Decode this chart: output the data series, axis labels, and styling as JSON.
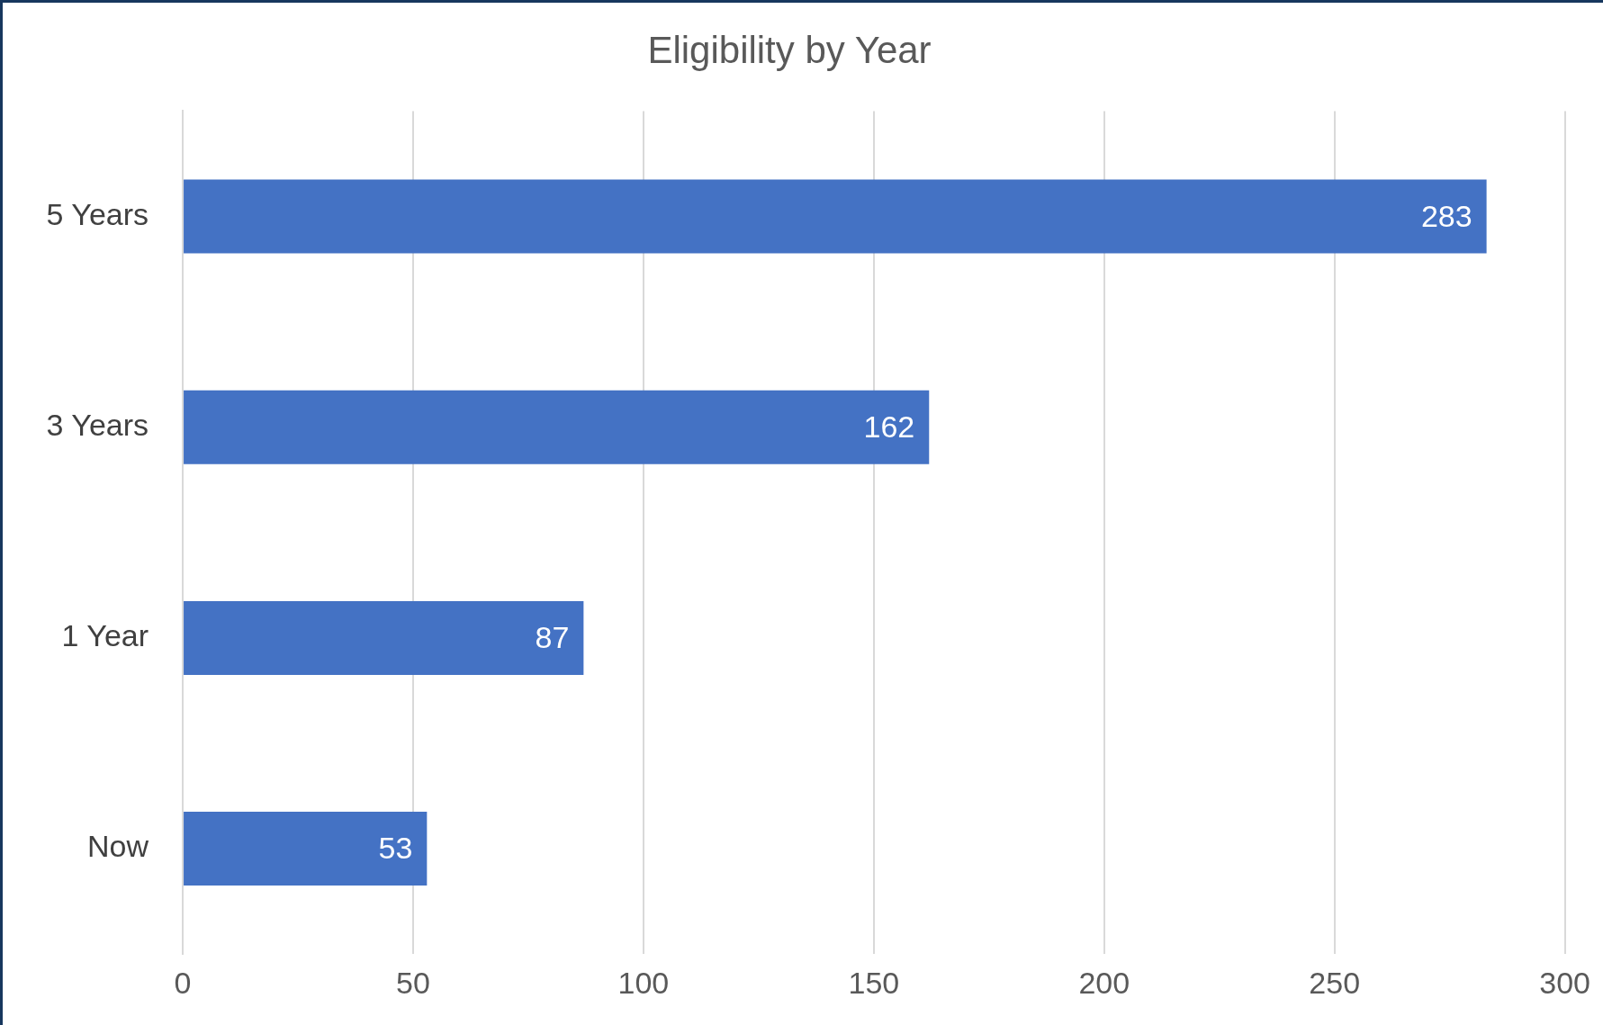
{
  "chart_data": {
    "type": "bar",
    "orientation": "horizontal",
    "title": "Eligibility by Year",
    "categories": [
      "5 Years",
      "3 Years",
      "1 Year",
      "Now"
    ],
    "values": [
      283,
      162,
      87,
      53
    ],
    "color": "#4472c4",
    "xlim": [
      0,
      300
    ],
    "xticks": [
      0,
      50,
      100,
      150,
      200,
      250,
      300
    ],
    "grid": "x",
    "legend": false,
    "data_labels": true
  }
}
